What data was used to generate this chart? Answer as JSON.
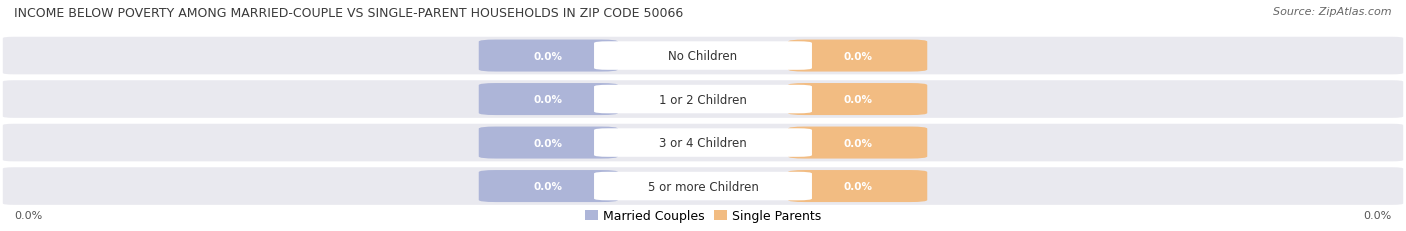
{
  "title": "INCOME BELOW POVERTY AMONG MARRIED-COUPLE VS SINGLE-PARENT HOUSEHOLDS IN ZIP CODE 50066",
  "source": "Source: ZipAtlas.com",
  "categories": [
    "No Children",
    "1 or 2 Children",
    "3 or 4 Children",
    "5 or more Children"
  ],
  "married_values": [
    0.0,
    0.0,
    0.0,
    0.0
  ],
  "single_values": [
    0.0,
    0.0,
    0.0,
    0.0
  ],
  "married_color": "#adb5d8",
  "single_color": "#f2bc82",
  "row_bg_color": "#e9e9ef",
  "title_fontsize": 9.0,
  "source_fontsize": 8,
  "tick_fontsize": 8,
  "legend_fontsize": 9,
  "category_fontsize": 8.5,
  "value_fontsize": 7.5,
  "figsize": [
    14.06,
    2.32
  ],
  "dpi": 100,
  "ylim_label": "0.0%",
  "background_color": "#ffffff"
}
